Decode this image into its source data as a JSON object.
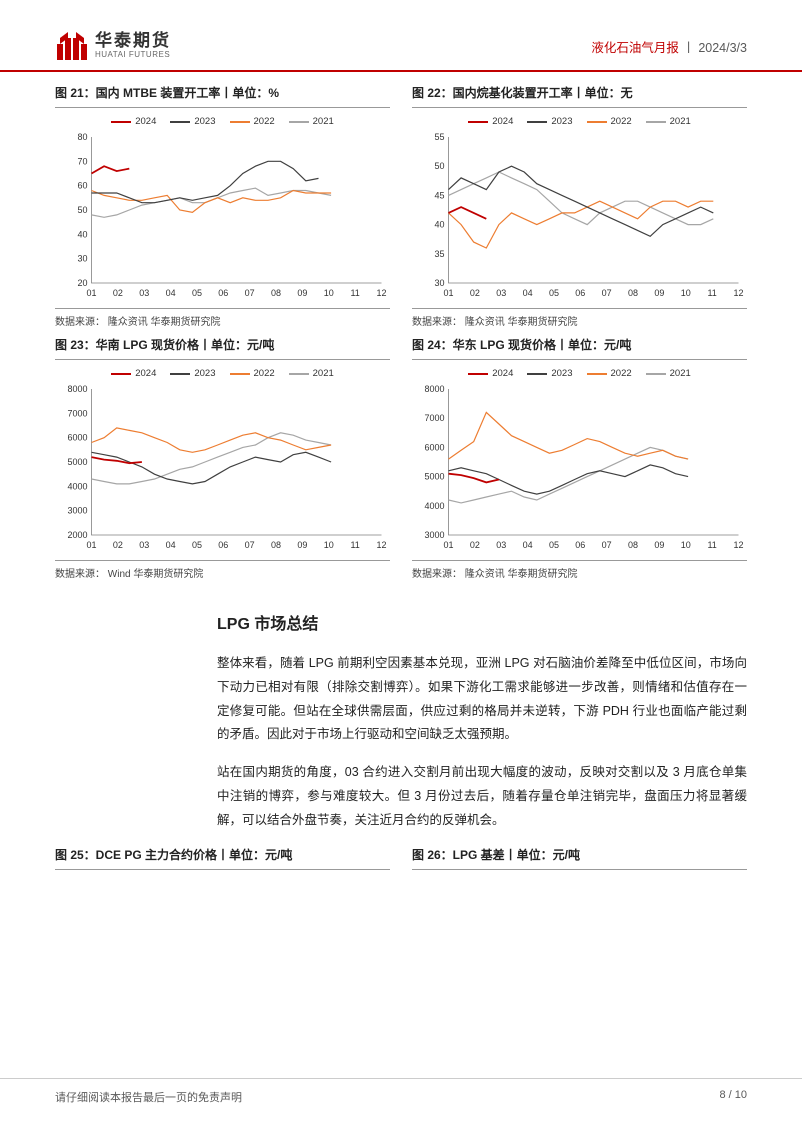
{
  "header": {
    "logo_cn": "华泰期货",
    "logo_en": "HUATAI FUTURES",
    "report_type": "液化石油气月报",
    "report_date": "2024/3/3",
    "sep": " 丨 "
  },
  "series_colors": {
    "2024": "#c00000",
    "2023": "#404040",
    "2022": "#ed7d31",
    "2021": "#a6a6a6"
  },
  "legend_labels": [
    "2024",
    "2023",
    "2022",
    "2021"
  ],
  "x_categories": [
    "01",
    "02",
    "03",
    "04",
    "05",
    "06",
    "07",
    "08",
    "09",
    "10",
    "11",
    "12"
  ],
  "charts": {
    "c21": {
      "title": "图 21：国内 MTBE 装置开工率丨单位：%",
      "source": "数据来源：  隆众资讯  华泰期货研究院",
      "ylim": [
        20,
        80
      ],
      "ytick_step": 10,
      "series": {
        "2024": [
          65,
          68,
          66,
          67
        ],
        "2023": [
          57,
          57,
          57,
          55,
          53,
          53,
          54,
          55,
          54,
          55,
          56,
          60,
          65,
          68,
          70,
          70,
          67,
          62,
          63
        ],
        "2022": [
          58,
          56,
          55,
          54,
          54,
          55,
          56,
          50,
          49,
          53,
          55,
          53,
          55,
          54,
          54,
          55,
          58,
          57,
          57,
          57
        ],
        "2021": [
          48,
          47,
          48,
          50,
          52,
          53,
          54,
          55,
          53,
          53,
          55,
          57,
          58,
          59,
          56,
          57,
          58,
          58,
          57,
          56
        ]
      }
    },
    "c22": {
      "title": "图 22：国内烷基化装置开工率丨单位：无",
      "source": "数据来源：  隆众资讯  华泰期货研究院",
      "ylim": [
        30,
        55
      ],
      "ytick_step": 5,
      "series": {
        "2024": [
          42,
          43,
          42,
          41
        ],
        "2023": [
          46,
          48,
          47,
          46,
          49,
          50,
          49,
          47,
          46,
          45,
          44,
          43,
          42,
          41,
          40,
          39,
          38,
          40,
          41,
          42,
          43,
          42
        ],
        "2022": [
          42,
          40,
          37,
          36,
          40,
          42,
          41,
          40,
          41,
          42,
          42,
          43,
          44,
          43,
          42,
          41,
          43,
          44,
          44,
          43,
          44,
          44
        ],
        "2021": [
          45,
          46,
          47,
          48,
          49,
          48,
          47,
          46,
          44,
          42,
          41,
          40,
          42,
          43,
          44,
          44,
          43,
          42,
          41,
          40,
          40,
          41
        ]
      }
    },
    "c23": {
      "title": "图 23：华南 LPG 现货价格丨单位：元/吨",
      "source": "数据来源：  Wind  华泰期货研究院",
      "ylim": [
        2000,
        8000
      ],
      "ytick_step": 1000,
      "series": {
        "2024": [
          5200,
          5100,
          5050,
          4950,
          5000
        ],
        "2023": [
          5400,
          5300,
          5200,
          5000,
          4800,
          4500,
          4300,
          4200,
          4100,
          4200,
          4500,
          4800,
          5000,
          5200,
          5100,
          5000,
          5300,
          5400,
          5200,
          5000
        ],
        "2022": [
          5800,
          6000,
          6400,
          6300,
          6200,
          6000,
          5800,
          5500,
          5400,
          5500,
          5700,
          5900,
          6100,
          6200,
          6000,
          5900,
          5700,
          5500,
          5600,
          5700
        ],
        "2021": [
          4300,
          4200,
          4100,
          4100,
          4200,
          4300,
          4500,
          4700,
          4800,
          5000,
          5200,
          5400,
          5600,
          5700,
          6000,
          6200,
          6100,
          5900,
          5800,
          5700
        ]
      }
    },
    "c24": {
      "title": "图 24：华东 LPG 现货价格丨单位：元/吨",
      "source": "数据来源：  隆众资讯  华泰期货研究院",
      "ylim": [
        3000,
        8000
      ],
      "ytick_step": 1000,
      "series": {
        "2024": [
          5100,
          5050,
          4950,
          4800,
          4900
        ],
        "2023": [
          5200,
          5300,
          5200,
          5100,
          4900,
          4700,
          4500,
          4400,
          4500,
          4700,
          4900,
          5100,
          5200,
          5100,
          5000,
          5200,
          5400,
          5300,
          5100,
          5000
        ],
        "2022": [
          5600,
          5900,
          6200,
          7200,
          6800,
          6400,
          6200,
          6000,
          5800,
          5900,
          6100,
          6300,
          6200,
          6000,
          5800,
          5700,
          5800,
          5900,
          5700,
          5600
        ],
        "2021": [
          4200,
          4100,
          4200,
          4300,
          4400,
          4500,
          4300,
          4200,
          4400,
          4600,
          4800,
          5000,
          5200,
          5400,
          5600,
          5800,
          6000,
          5900,
          5700,
          5600
        ]
      }
    },
    "c25": {
      "title": "图 25：DCE PG 主力合约价格丨单位：元/吨"
    },
    "c26": {
      "title": "图 26：LPG 基差丨单位：元/吨"
    }
  },
  "section": {
    "title": "LPG 市场总结",
    "para1": "整体来看，随着 LPG 前期利空因素基本兑现，亚洲 LPG 对石脑油价差降至中低位区间，市场向下动力已相对有限（排除交割博弈）。如果下游化工需求能够进一步改善，则情绪和估值存在一定修复可能。但站在全球供需层面，供应过剩的格局并未逆转，下游 PDH 行业也面临产能过剩的矛盾。因此对于市场上行驱动和空间缺乏太强预期。",
    "para2": "站在国内期货的角度，03 合约进入交割月前出现大幅度的波动，反映对交割以及 3 月底仓单集中注销的博弈，参与难度较大。但 3 月份过去后，随着存量仓单注销完毕，盘面压力将显著缓解，可以结合外盘节奏，关注近月合约的反弹机会。"
  },
  "footer": {
    "disclaimer": "请仔细阅读本报告最后一页的免责声明",
    "page": "8 / 10"
  },
  "chart_style": {
    "background": "#ffffff",
    "axis_color": "#808080",
    "axis_width": 0.8,
    "line_width": 1.2,
    "tick_fontsize": 9,
    "tick_color": "#333333"
  }
}
